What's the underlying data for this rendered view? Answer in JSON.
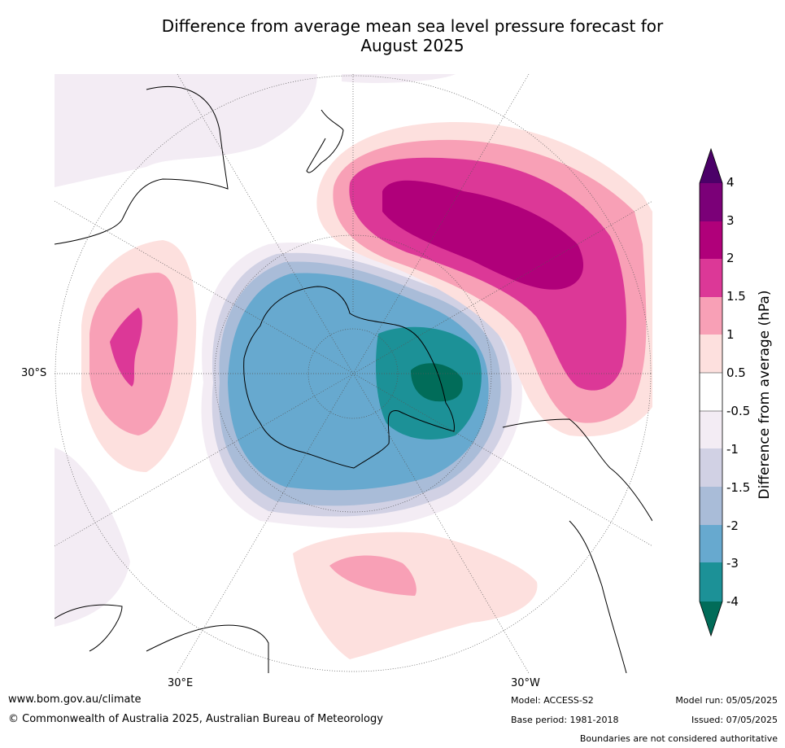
{
  "title_line1": "Difference from average mean sea level pressure forecast for",
  "title_line2": "August 2025",
  "labels": {
    "lat_30s": "30°S",
    "lon_30e": "30°E",
    "lon_30w": "30°W"
  },
  "colorbar": {
    "title": "Difference from average (hPa)",
    "ticks": [
      "4",
      "3",
      "2",
      "1.5",
      "1",
      "0.5",
      "-0.5",
      "-1",
      "-1.5",
      "-2",
      "-3",
      "-4"
    ],
    "colors": {
      "above_max": "#4b0068",
      "3_to_4": "#7b0078",
      "2_to_3": "#b0007a",
      "1.5_to_2": "#dc3897",
      "1_to_1.5": "#f8a0b6",
      "0.5_to_1": "#fde0de",
      "neutral": "#ffffff",
      "-1_to_-0.5": "#f3ecf4",
      "-1.5_to_-1": "#d1d1e4",
      "-2_to_-1.5": "#a9bcd8",
      "-3_to_-2": "#67a9cf",
      "-4_to_-3": "#1c9197",
      "below_min": "#016c59"
    }
  },
  "footer": {
    "website": "www.bom.gov.au/climate",
    "copyright": "© Commonwealth of Australia 2025, Australian Bureau of Meteorology",
    "model": "Model: ACCESS-S2",
    "base_period": "Base period: 1981-2018",
    "model_run": "Model run: 05/05/2025",
    "issued": "Issued: 07/05/2025",
    "disclaimer": "Boundaries are not considered authoritative"
  }
}
